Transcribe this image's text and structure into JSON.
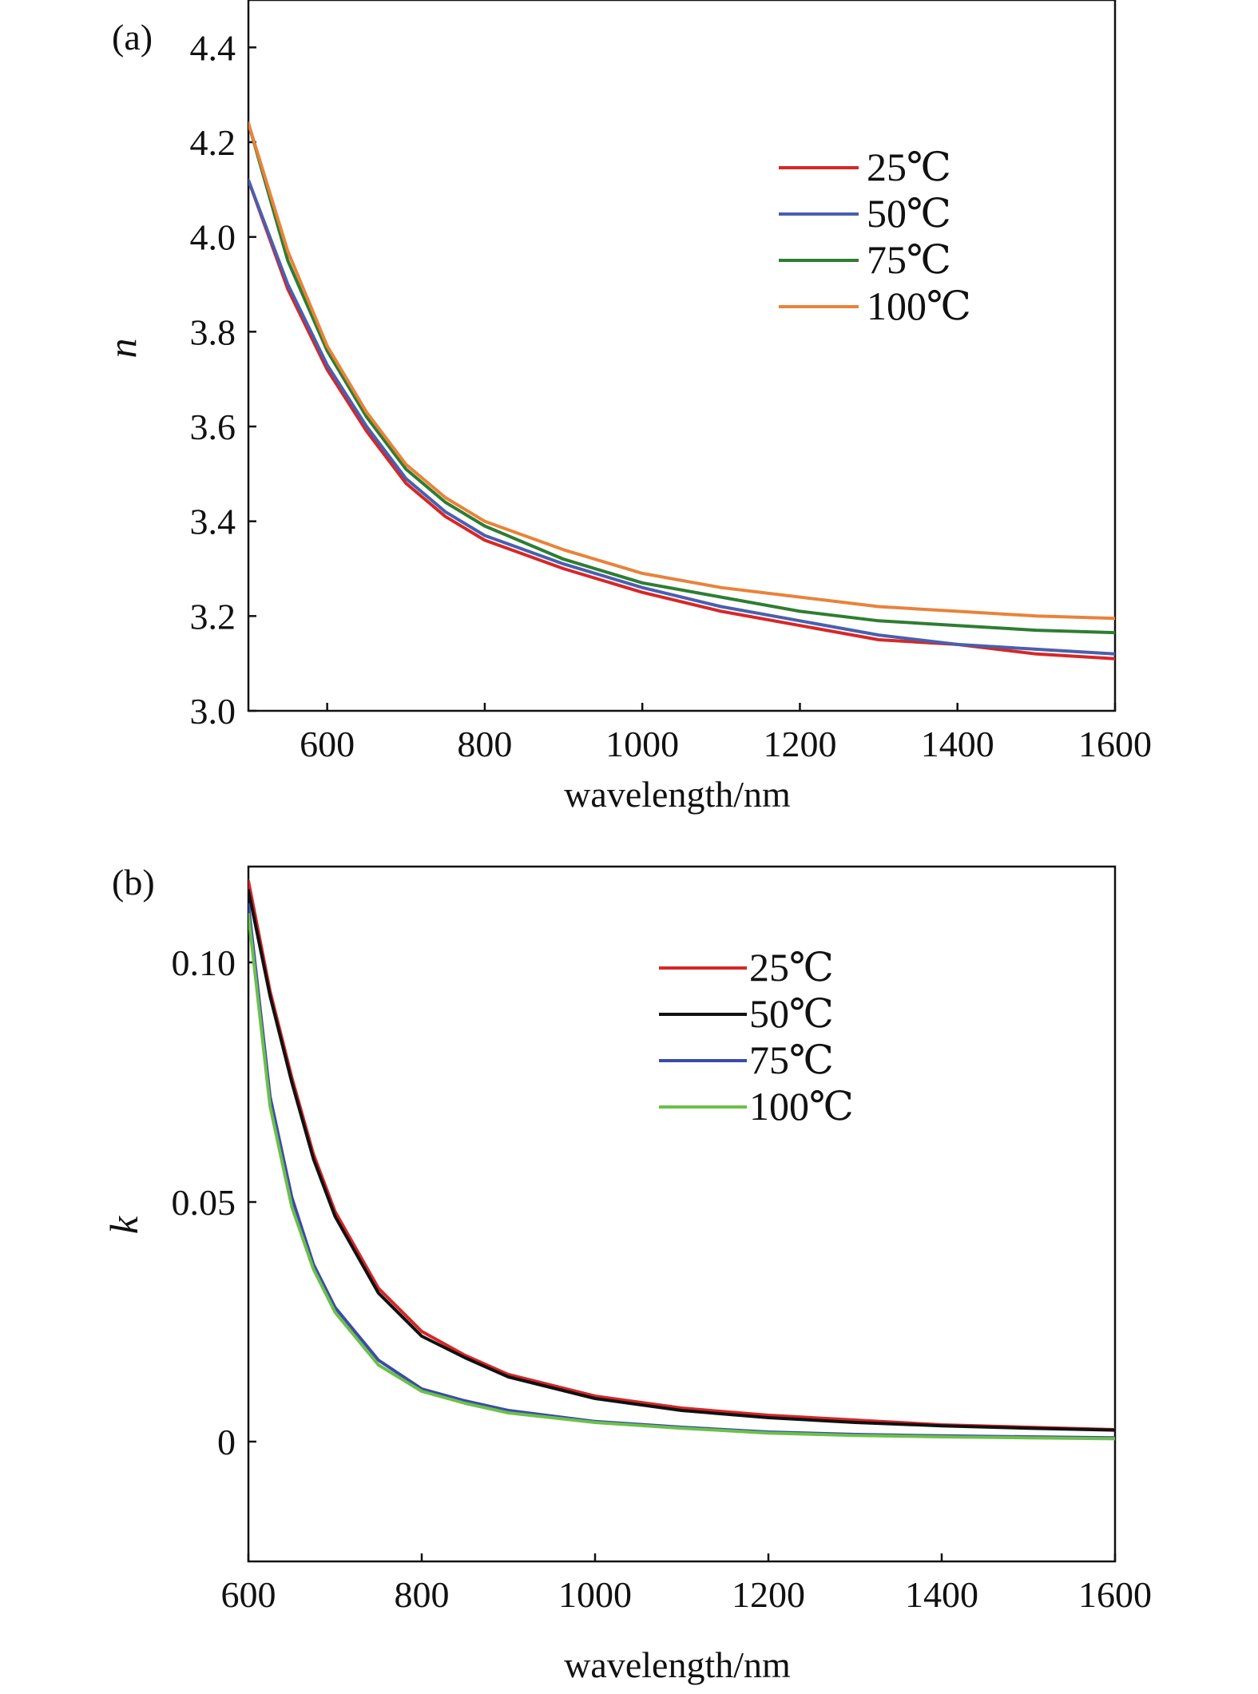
{
  "chart_data": [
    {
      "type": "line",
      "panel_label": "(a)",
      "xlabel": "wavelength/nm",
      "ylabel": "n",
      "xlim": [
        500,
        1600
      ],
      "ylim": [
        3.0,
        4.5
      ],
      "x_ticks": [
        600,
        800,
        1000,
        1200,
        1400,
        1600
      ],
      "x_tick_labels": [
        "600",
        "800",
        "1000",
        "1200",
        "1400",
        "1600"
      ],
      "y_ticks": [
        3.0,
        3.2,
        3.4,
        3.6,
        3.8,
        4.0,
        4.2,
        4.4
      ],
      "y_tick_labels": [
        "3.0",
        "3.2",
        "3.4",
        "3.6",
        "3.8",
        "4.0",
        "4.2",
        "4.4"
      ],
      "grid": false,
      "legend_position": "top-right",
      "x": [
        500,
        550,
        600,
        650,
        700,
        750,
        800,
        900,
        1000,
        1100,
        1200,
        1300,
        1400,
        1500,
        1600
      ],
      "series": [
        {
          "name": "25℃",
          "color": "#d62728",
          "values": [
            4.12,
            3.89,
            3.72,
            3.59,
            3.48,
            3.41,
            3.36,
            3.3,
            3.25,
            3.21,
            3.18,
            3.15,
            3.14,
            3.12,
            3.11
          ]
        },
        {
          "name": "50℃",
          "color": "#4a5fae",
          "values": [
            4.12,
            3.9,
            3.73,
            3.6,
            3.49,
            3.42,
            3.37,
            3.31,
            3.26,
            3.22,
            3.19,
            3.16,
            3.14,
            3.13,
            3.12
          ]
        },
        {
          "name": "75℃",
          "color": "#2e7d32",
          "values": [
            4.24,
            3.95,
            3.76,
            3.62,
            3.51,
            3.44,
            3.39,
            3.32,
            3.27,
            3.24,
            3.21,
            3.19,
            3.18,
            3.17,
            3.165
          ]
        },
        {
          "name": "100℃",
          "color": "#e8833a",
          "values": [
            4.24,
            3.97,
            3.77,
            3.63,
            3.52,
            3.45,
            3.4,
            3.34,
            3.29,
            3.26,
            3.24,
            3.22,
            3.21,
            3.2,
            3.195
          ]
        }
      ]
    },
    {
      "type": "line",
      "panel_label": "(b)",
      "xlabel": "wavelength/nm",
      "ylabel": "k",
      "xlim": [
        600,
        1600
      ],
      "ylim": [
        -0.025,
        0.12
      ],
      "x_ticks": [
        600,
        800,
        1000,
        1200,
        1400,
        1600
      ],
      "x_tick_labels": [
        "600",
        "800",
        "1000",
        "1200",
        "1400",
        "1600"
      ],
      "y_ticks": [
        0,
        0.05,
        0.1
      ],
      "y_tick_labels": [
        "0",
        "0.05",
        "0.10"
      ],
      "grid": false,
      "legend_position": "top-right",
      "x": [
        600,
        625,
        650,
        675,
        700,
        750,
        800,
        850,
        900,
        1000,
        1100,
        1200,
        1300,
        1400,
        1500,
        1600
      ],
      "series": [
        {
          "name": "25℃",
          "color": "#d62728",
          "values": [
            0.117,
            0.094,
            0.076,
            0.06,
            0.048,
            0.032,
            0.023,
            0.018,
            0.014,
            0.0095,
            0.007,
            0.0055,
            0.0045,
            0.0035,
            0.003,
            0.0025
          ]
        },
        {
          "name": "50℃",
          "color": "#111111",
          "values": [
            0.115,
            0.093,
            0.075,
            0.059,
            0.047,
            0.031,
            0.022,
            0.0175,
            0.0135,
            0.009,
            0.0065,
            0.005,
            0.004,
            0.0033,
            0.0028,
            0.0024
          ]
        },
        {
          "name": "75℃",
          "color": "#3b4ba8",
          "values": [
            0.112,
            0.072,
            0.051,
            0.037,
            0.028,
            0.017,
            0.011,
            0.0085,
            0.0065,
            0.0042,
            0.003,
            0.002,
            0.0015,
            0.0012,
            0.001,
            0.0008
          ]
        },
        {
          "name": "100℃",
          "color": "#6cc04a",
          "values": [
            0.11,
            0.07,
            0.049,
            0.036,
            0.027,
            0.016,
            0.0105,
            0.008,
            0.006,
            0.004,
            0.0028,
            0.0018,
            0.0013,
            0.001,
            0.0008,
            0.0006
          ]
        }
      ]
    }
  ]
}
